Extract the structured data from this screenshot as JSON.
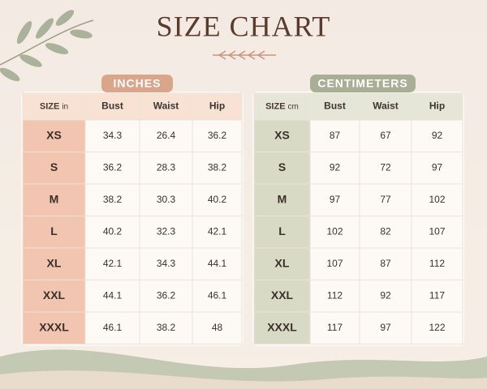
{
  "title": "SIZE CHART",
  "tables": [
    {
      "label": "INCHES",
      "size_header": "SIZE",
      "unit": "in",
      "columns": [
        "Bust",
        "Waist",
        "Hip"
      ],
      "rows": [
        [
          "XS",
          34.3,
          26.4,
          36.2
        ],
        [
          "S",
          36.2,
          28.3,
          38.2
        ],
        [
          "M",
          38.2,
          30.3,
          40.2
        ],
        [
          "L",
          40.2,
          32.3,
          42.1
        ],
        [
          "XL",
          42.1,
          34.3,
          44.1
        ],
        [
          "XXL",
          44.1,
          36.2,
          46.1
        ],
        [
          "XXXL",
          46.1,
          38.2,
          48
        ]
      ]
    },
    {
      "label": "CENTIMETERS",
      "size_header": "SIZE",
      "unit": "cm",
      "columns": [
        "Bust",
        "Waist",
        "Hip"
      ],
      "rows": [
        [
          "XS",
          87,
          67,
          92
        ],
        [
          "S",
          92,
          72,
          97
        ],
        [
          "M",
          97,
          77,
          102
        ],
        [
          "L",
          102,
          82,
          107
        ],
        [
          "XL",
          107,
          87,
          112
        ],
        [
          "XXL",
          112,
          92,
          117
        ],
        [
          "XXXL",
          117,
          97,
          122
        ]
      ]
    }
  ]
}
